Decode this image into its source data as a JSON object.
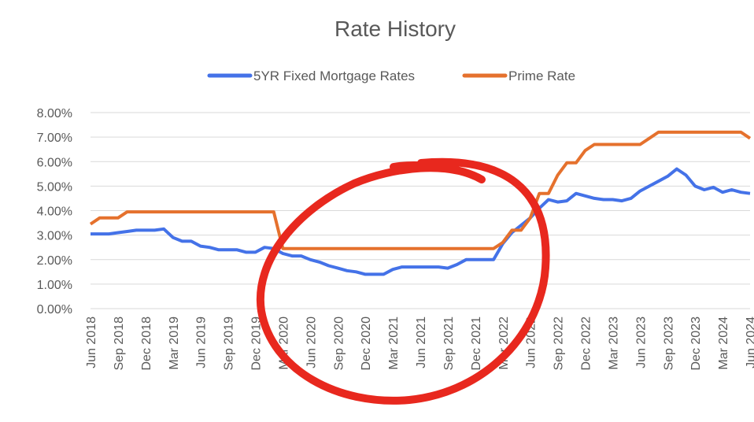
{
  "chart_data": {
    "type": "line",
    "title": "Rate History",
    "xlabel": "",
    "ylabel": "",
    "ylim": [
      0,
      0.08
    ],
    "yticks": [
      "0.00%",
      "1.00%",
      "2.00%",
      "3.00%",
      "4.00%",
      "5.00%",
      "6.00%",
      "7.00%",
      "8.00%"
    ],
    "xticks": [
      "Jun 2018",
      "Sep 2018",
      "Dec 2018",
      "Mar 2019",
      "Jun 2019",
      "Sep 2019",
      "Dec 2019",
      "Mar 2020",
      "Jun 2020",
      "Sep 2020",
      "Dec 2020",
      "Mar 2021",
      "Jun 2021",
      "Sep 2021",
      "Dec 2021",
      "Mar 2022",
      "Jun 2022",
      "Sep 2022",
      "Dec 2022",
      "Mar 2023",
      "Jun 2023",
      "Sep 2023",
      "Dec 2023",
      "Mar 2024",
      "Jun 2024"
    ],
    "grid": true,
    "legend_position": "top",
    "series": [
      {
        "name": "5YR Fixed Mortgage Rates",
        "color": "#4472e8",
        "values": [
          0.0305,
          0.0305,
          0.0305,
          0.031,
          0.0315,
          0.032,
          0.032,
          0.032,
          0.0325,
          0.029,
          0.0275,
          0.0275,
          0.0255,
          0.025,
          0.024,
          0.024,
          0.024,
          0.023,
          0.023,
          0.025,
          0.0245,
          0.0225,
          0.0215,
          0.0215,
          0.02,
          0.019,
          0.0175,
          0.0165,
          0.0155,
          0.015,
          0.014,
          0.014,
          0.014,
          0.016,
          0.017,
          0.017,
          0.017,
          0.017,
          0.017,
          0.0165,
          0.018,
          0.02,
          0.02,
          0.02,
          0.02,
          0.0265,
          0.031,
          0.034,
          0.037,
          0.041,
          0.0445,
          0.0435,
          0.044,
          0.047,
          0.046,
          0.045,
          0.0445,
          0.0445,
          0.044,
          0.045,
          0.048,
          0.05,
          0.052,
          0.054,
          0.057,
          0.0545,
          0.05,
          0.0485,
          0.0495,
          0.0475,
          0.0485,
          0.0475,
          0.047
        ]
      },
      {
        "name": "Prime Rate",
        "color": "#e5712d",
        "values": [
          0.0345,
          0.037,
          0.037,
          0.037,
          0.0395,
          0.0395,
          0.0395,
          0.0395,
          0.0395,
          0.0395,
          0.0395,
          0.0395,
          0.0395,
          0.0395,
          0.0395,
          0.0395,
          0.0395,
          0.0395,
          0.0395,
          0.0395,
          0.0395,
          0.0245,
          0.0245,
          0.0245,
          0.0245,
          0.0245,
          0.0245,
          0.0245,
          0.0245,
          0.0245,
          0.0245,
          0.0245,
          0.0245,
          0.0245,
          0.0245,
          0.0245,
          0.0245,
          0.0245,
          0.0245,
          0.0245,
          0.0245,
          0.0245,
          0.0245,
          0.0245,
          0.0245,
          0.027,
          0.032,
          0.032,
          0.037,
          0.047,
          0.047,
          0.0545,
          0.0595,
          0.0595,
          0.0645,
          0.067,
          0.067,
          0.067,
          0.067,
          0.067,
          0.067,
          0.0695,
          0.072,
          0.072,
          0.072,
          0.072,
          0.072,
          0.072,
          0.072,
          0.072,
          0.072,
          0.072,
          0.0695
        ]
      }
    ],
    "annotations": [
      {
        "type": "hand-drawn-circle",
        "color": "#e8281e"
      }
    ]
  }
}
